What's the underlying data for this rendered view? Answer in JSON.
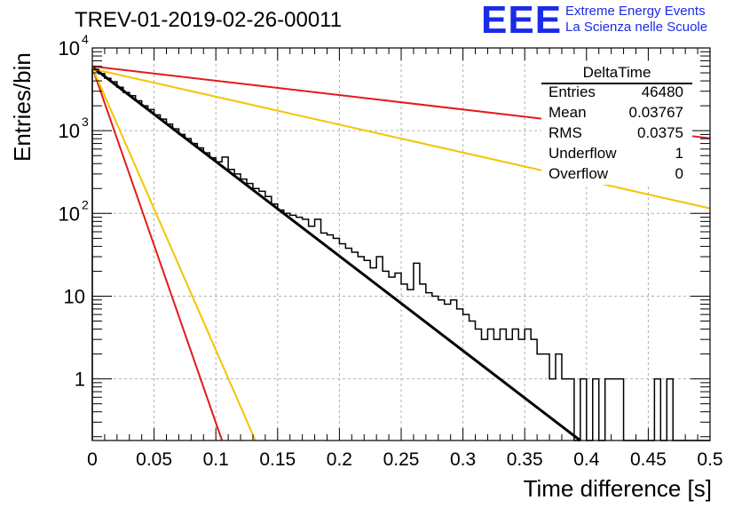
{
  "chart_data": {
    "type": "line",
    "title": "TREV-01-2019-02-26-00011",
    "xlabel": "Time difference [s]",
    "ylabel": "Entries/bin",
    "xlim": [
      0,
      0.5
    ],
    "ylim": [
      0.18,
      10000
    ],
    "log_y": true,
    "grid": true,
    "x_ticks": [
      "0",
      "0.05",
      "0.1",
      "0.15",
      "0.2",
      "0.25",
      "0.3",
      "0.35",
      "0.4",
      "0.45",
      "0.5"
    ],
    "y_ticks": [
      {
        "value": 1,
        "label": "1"
      },
      {
        "value": 10,
        "label": "10"
      },
      {
        "value": 100,
        "label": "10",
        "exp": "2"
      },
      {
        "value": 1000,
        "label": "10",
        "exp": "3"
      },
      {
        "value": 10000,
        "label": "10",
        "exp": "4"
      }
    ],
    "histogram": {
      "bin_width": 0.005,
      "color": "#000000",
      "values": [
        5500,
        4900,
        4300,
        3900,
        3350,
        2900,
        2650,
        2300,
        2000,
        1800,
        1550,
        1380,
        1200,
        1050,
        900,
        800,
        700,
        620,
        540,
        470,
        420,
        480,
        340,
        300,
        260,
        230,
        200,
        185,
        160,
        130,
        110,
        100,
        95,
        90,
        85,
        70,
        85,
        58,
        55,
        50,
        43,
        38,
        34,
        30,
        27,
        22,
        30,
        20,
        17,
        19,
        14,
        12,
        25,
        14,
        11,
        10,
        9,
        8,
        9,
        7,
        6,
        5,
        4,
        3,
        4,
        3,
        4,
        3,
        4,
        3,
        4,
        3,
        2,
        2,
        1,
        2,
        1,
        1,
        0,
        1,
        0,
        1,
        0,
        1,
        1,
        1,
        0,
        0,
        0,
        0,
        0,
        1,
        0,
        1,
        0,
        0,
        0,
        0,
        0,
        0
      ]
    },
    "lines": [
      {
        "color": "#000000",
        "width": 3,
        "x": [
          0,
          0.395
        ],
        "y": [
          5900,
          0.18
        ]
      },
      {
        "color": "#e31a1c",
        "width": 2,
        "x": [
          0,
          0.105
        ],
        "y": [
          5800,
          0.18
        ]
      },
      {
        "color": "#f5c400",
        "width": 2,
        "x": [
          0,
          0.132
        ],
        "y": [
          5800,
          0.18
        ]
      },
      {
        "color": "#f5c400",
        "width": 2,
        "x": [
          0,
          0.5
        ],
        "y": [
          5600,
          115
        ]
      },
      {
        "color": "#e31a1c",
        "width": 2,
        "x": [
          0,
          0.5
        ],
        "y": [
          6000,
          810
        ]
      }
    ]
  },
  "stats": {
    "name": "DeltaTime",
    "rows": [
      {
        "label": "Entries",
        "value": "46480"
      },
      {
        "label": "Mean",
        "value": "0.03767"
      },
      {
        "label": "RMS",
        "value": "0.0375"
      },
      {
        "label": "Underflow",
        "value": "1"
      },
      {
        "label": "Overflow",
        "value": "0"
      }
    ]
  },
  "logo": {
    "mark": "EEE",
    "line1": "Extreme Energy Events",
    "line2": "La Scienza nelle Scuole"
  }
}
